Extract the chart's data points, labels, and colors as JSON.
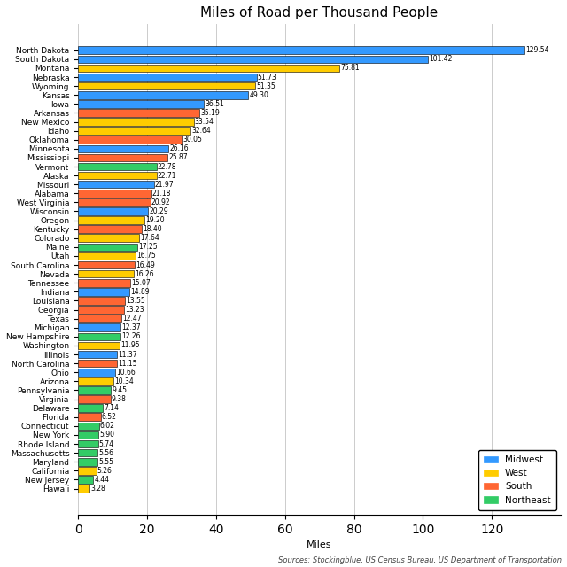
{
  "title": "Miles of Road per Thousand People",
  "xlabel": "Miles",
  "source": "Sources: Stockingblue, US Census Bureau, US Department of Transportation",
  "states": [
    "North Dakota",
    "South Dakota",
    "Montana",
    "Nebraska",
    "Wyoming",
    "Kansas",
    "Iowa",
    "Arkansas",
    "New Mexico",
    "Idaho",
    "Oklahoma",
    "Minnesota",
    "Mississippi",
    "Vermont",
    "Alaska",
    "Missouri",
    "Alabama",
    "West Virginia",
    "Wisconsin",
    "Oregon",
    "Kentucky",
    "Colorado",
    "Maine",
    "Utah",
    "South Carolina",
    "Nevada",
    "Tennessee",
    "Indiana",
    "Louisiana",
    "Georgia",
    "Texas",
    "Michigan",
    "New Hampshire",
    "Washington",
    "Illinois",
    "North Carolina",
    "Ohio",
    "Arizona",
    "Pennsylvania",
    "Virginia",
    "Delaware",
    "Florida",
    "Connecticut",
    "New York",
    "Rhode Island",
    "Massachusetts",
    "Maryland",
    "California",
    "New Jersey",
    "Hawaii"
  ],
  "values": [
    129.54,
    101.42,
    75.81,
    51.73,
    51.35,
    49.3,
    36.51,
    35.19,
    33.54,
    32.64,
    30.05,
    26.16,
    25.87,
    22.78,
    22.71,
    21.97,
    21.18,
    20.92,
    20.29,
    19.2,
    18.4,
    17.64,
    17.25,
    16.75,
    16.49,
    16.26,
    15.07,
    14.89,
    13.55,
    13.23,
    12.47,
    12.37,
    12.26,
    11.95,
    11.37,
    11.15,
    10.66,
    10.34,
    9.45,
    9.38,
    7.14,
    6.52,
    6.02,
    5.9,
    5.74,
    5.56,
    5.55,
    5.26,
    4.44,
    3.28
  ],
  "regions": [
    "Midwest",
    "Midwest",
    "West",
    "Midwest",
    "West",
    "Midwest",
    "Midwest",
    "South",
    "West",
    "West",
    "South",
    "Midwest",
    "South",
    "Northeast",
    "West",
    "Midwest",
    "South",
    "South",
    "Midwest",
    "West",
    "South",
    "West",
    "Northeast",
    "West",
    "South",
    "West",
    "South",
    "Midwest",
    "South",
    "South",
    "South",
    "Midwest",
    "Northeast",
    "West",
    "Midwest",
    "South",
    "Midwest",
    "West",
    "Northeast",
    "South",
    "Northeast",
    "South",
    "Northeast",
    "Northeast",
    "Northeast",
    "Northeast",
    "Northeast",
    "West",
    "Northeast",
    "West"
  ],
  "region_colors": {
    "Midwest": "#3399FF",
    "West": "#FFCC00",
    "South": "#FF6633",
    "Northeast": "#33CC66"
  },
  "bar_edge_color": "#000000",
  "background_color": "#FFFFFF",
  "grid_color": "#CCCCCC",
  "value_font_size": 5.5,
  "label_font_size": 6.5,
  "title_font_size": 11,
  "source_font_size": 6.0,
  "xlim": [
    0,
    140
  ],
  "xticks": [
    0,
    20,
    40,
    60,
    80,
    100,
    120
  ]
}
